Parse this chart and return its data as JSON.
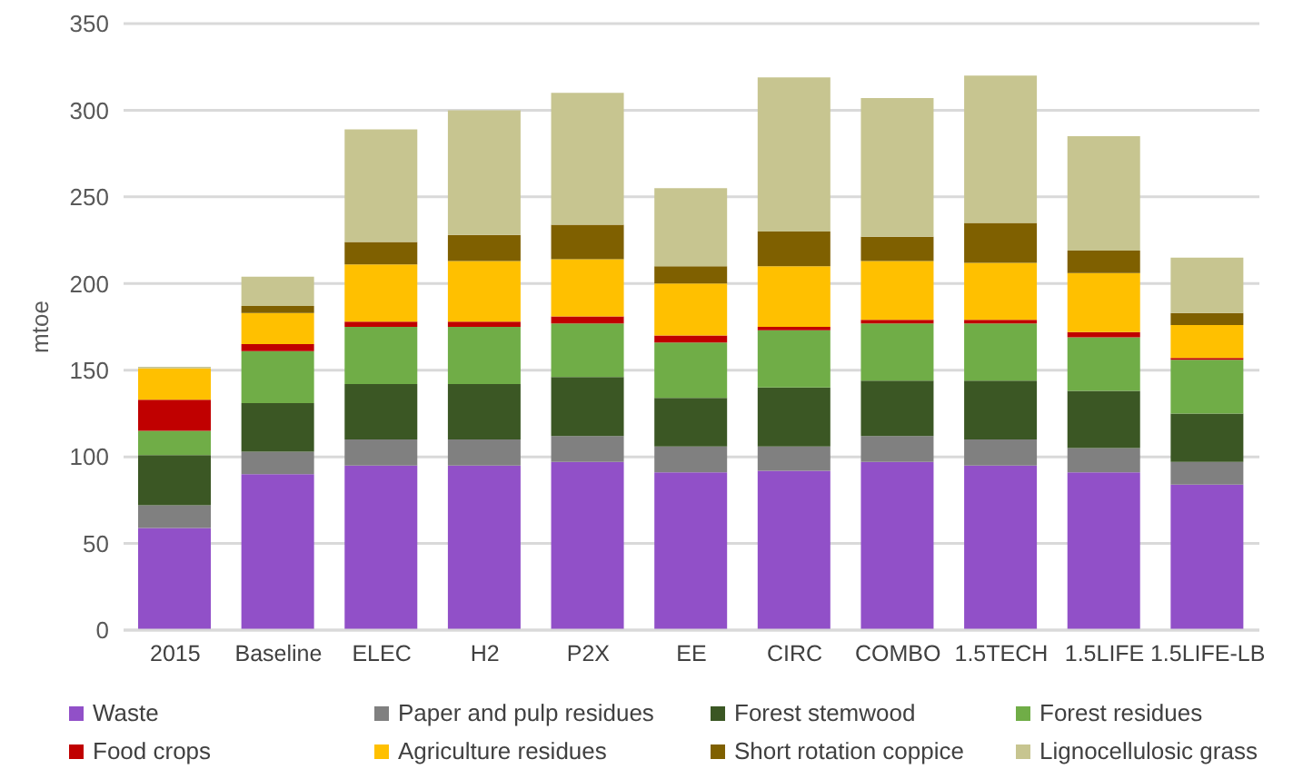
{
  "chart_data": {
    "type": "bar",
    "stacked": true,
    "ylabel": "mtoe",
    "categories": [
      "2015",
      "Baseline",
      "ELEC",
      "H2",
      "P2X",
      "EE",
      "CIRC",
      "COMBO",
      "1.5TECH",
      "1.5LIFE",
      "1.5LIFE-LB"
    ],
    "series": [
      {
        "name": "Waste",
        "color": "#9150c8",
        "values": [
          59,
          90,
          95,
          95,
          97,
          91,
          92,
          97,
          95,
          91,
          84
        ]
      },
      {
        "name": "Paper and pulp residues",
        "color": "#808080",
        "values": [
          13,
          13,
          15,
          15,
          15,
          15,
          14,
          15,
          15,
          14,
          13
        ]
      },
      {
        "name": "Forest stemwood",
        "color": "#3b5724",
        "values": [
          29,
          28,
          32,
          32,
          34,
          28,
          34,
          32,
          34,
          33,
          28
        ]
      },
      {
        "name": "Forest residues",
        "color": "#70ad47",
        "values": [
          14,
          30,
          33,
          33,
          31,
          32,
          33,
          33,
          33,
          31,
          31
        ]
      },
      {
        "name": "Food crops",
        "color": "#c00000",
        "values": [
          18,
          4,
          3,
          3,
          4,
          4,
          2,
          2,
          2,
          3,
          1
        ]
      },
      {
        "name": "Agriculture residues",
        "color": "#ffc000",
        "values": [
          18,
          18,
          33,
          35,
          33,
          30,
          35,
          34,
          33,
          34,
          19
        ]
      },
      {
        "name": "Short rotation coppice",
        "color": "#7f6000",
        "values": [
          0,
          4,
          13,
          15,
          20,
          10,
          20,
          14,
          23,
          13,
          7
        ]
      },
      {
        "name": "Lignocellulosic grass",
        "color": "#c7c590",
        "values": [
          1,
          17,
          65,
          72,
          76,
          45,
          89,
          80,
          85,
          66,
          32
        ]
      }
    ],
    "ylim": [
      0,
      350
    ],
    "yticks": [
      0,
      50,
      100,
      150,
      200,
      250,
      300,
      350
    ],
    "grid": "y",
    "legend": "bottom"
  }
}
